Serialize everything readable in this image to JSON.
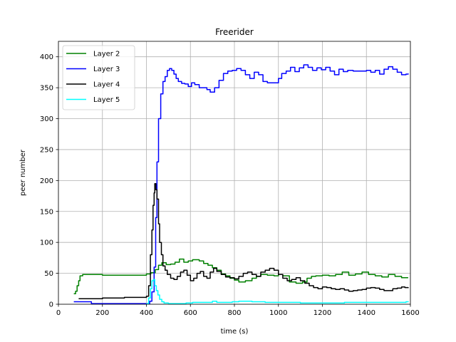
{
  "chart_data": {
    "type": "line",
    "title": "Freerider",
    "xlabel": "time (s)",
    "ylabel": "peer number",
    "xlim": [
      0,
      1600
    ],
    "ylim": [
      0,
      425
    ],
    "xticks": [
      0,
      200,
      400,
      600,
      800,
      1000,
      1200,
      1400,
      1600
    ],
    "yticks": [
      0,
      50,
      100,
      150,
      200,
      250,
      300,
      350,
      400
    ],
    "xtick_labels": [
      "0",
      "200",
      "400",
      "600",
      "800",
      "1000",
      "1200",
      "1400",
      "1600"
    ],
    "ytick_labels": [
      "0",
      "50",
      "100",
      "150",
      "200",
      "250",
      "300",
      "350",
      "400"
    ],
    "grid": true,
    "legend_position": "top-left",
    "series": [
      {
        "name": "Layer 2",
        "color": "#008000",
        "points": [
          [
            70,
            17
          ],
          [
            78,
            21
          ],
          [
            85,
            30
          ],
          [
            92,
            38
          ],
          [
            98,
            46
          ],
          [
            110,
            48
          ],
          [
            150,
            48
          ],
          [
            200,
            47
          ],
          [
            260,
            47
          ],
          [
            340,
            47
          ],
          [
            380,
            47
          ],
          [
            400,
            49
          ],
          [
            420,
            51
          ],
          [
            440,
            56
          ],
          [
            455,
            63
          ],
          [
            470,
            67
          ],
          [
            490,
            64
          ],
          [
            510,
            65
          ],
          [
            530,
            68
          ],
          [
            550,
            73
          ],
          [
            570,
            68
          ],
          [
            590,
            70
          ],
          [
            610,
            72
          ],
          [
            640,
            70
          ],
          [
            660,
            66
          ],
          [
            680,
            63
          ],
          [
            700,
            59
          ],
          [
            720,
            55
          ],
          [
            740,
            49
          ],
          [
            760,
            46
          ],
          [
            780,
            42
          ],
          [
            800,
            39
          ],
          [
            820,
            36
          ],
          [
            850,
            38
          ],
          [
            880,
            42
          ],
          [
            900,
            45
          ],
          [
            920,
            48
          ],
          [
            950,
            47
          ],
          [
            980,
            46
          ],
          [
            1000,
            48
          ],
          [
            1020,
            46
          ],
          [
            1050,
            36
          ],
          [
            1080,
            34
          ],
          [
            1110,
            36
          ],
          [
            1130,
            42
          ],
          [
            1150,
            45
          ],
          [
            1170,
            46
          ],
          [
            1200,
            47
          ],
          [
            1230,
            46
          ],
          [
            1260,
            48
          ],
          [
            1290,
            52
          ],
          [
            1320,
            47
          ],
          [
            1350,
            49
          ],
          [
            1380,
            52
          ],
          [
            1410,
            48
          ],
          [
            1440,
            46
          ],
          [
            1470,
            44
          ],
          [
            1500,
            48
          ],
          [
            1530,
            45
          ],
          [
            1560,
            43
          ],
          [
            1590,
            43
          ]
        ]
      },
      {
        "name": "Layer 3",
        "color": "#0000ff",
        "points": [
          [
            70,
            4
          ],
          [
            100,
            4
          ],
          [
            150,
            1
          ],
          [
            200,
            1
          ],
          [
            260,
            1
          ],
          [
            330,
            1
          ],
          [
            400,
            1
          ],
          [
            415,
            5
          ],
          [
            425,
            20
          ],
          [
            435,
            60
          ],
          [
            442,
            140
          ],
          [
            448,
            230
          ],
          [
            455,
            300
          ],
          [
            465,
            340
          ],
          [
            475,
            360
          ],
          [
            485,
            368
          ],
          [
            495,
            378
          ],
          [
            505,
            381
          ],
          [
            515,
            378
          ],
          [
            525,
            372
          ],
          [
            535,
            365
          ],
          [
            545,
            360
          ],
          [
            560,
            357
          ],
          [
            575,
            356
          ],
          [
            590,
            352
          ],
          [
            605,
            358
          ],
          [
            620,
            355
          ],
          [
            640,
            350
          ],
          [
            660,
            350
          ],
          [
            675,
            347
          ],
          [
            690,
            343
          ],
          [
            710,
            350
          ],
          [
            730,
            362
          ],
          [
            750,
            373
          ],
          [
            770,
            377
          ],
          [
            790,
            378
          ],
          [
            810,
            381
          ],
          [
            830,
            378
          ],
          [
            850,
            371
          ],
          [
            870,
            365
          ],
          [
            890,
            375
          ],
          [
            910,
            371
          ],
          [
            930,
            360
          ],
          [
            950,
            358
          ],
          [
            980,
            358
          ],
          [
            1000,
            365
          ],
          [
            1015,
            373
          ],
          [
            1035,
            377
          ],
          [
            1055,
            383
          ],
          [
            1075,
            376
          ],
          [
            1095,
            382
          ],
          [
            1115,
            387
          ],
          [
            1135,
            383
          ],
          [
            1155,
            378
          ],
          [
            1175,
            382
          ],
          [
            1195,
            379
          ],
          [
            1215,
            383
          ],
          [
            1235,
            377
          ],
          [
            1255,
            371
          ],
          [
            1275,
            380
          ],
          [
            1295,
            376
          ],
          [
            1315,
            378
          ],
          [
            1340,
            377
          ],
          [
            1370,
            377
          ],
          [
            1400,
            378
          ],
          [
            1420,
            375
          ],
          [
            1440,
            378
          ],
          [
            1460,
            372
          ],
          [
            1480,
            380
          ],
          [
            1500,
            384
          ],
          [
            1520,
            380
          ],
          [
            1540,
            375
          ],
          [
            1560,
            371
          ],
          [
            1580,
            372
          ],
          [
            1590,
            373
          ]
        ]
      },
      {
        "name": "Layer 4",
        "color": "#000000",
        "points": [
          [
            92,
            9
          ],
          [
            200,
            10
          ],
          [
            300,
            11
          ],
          [
            400,
            13
          ],
          [
            410,
            30
          ],
          [
            418,
            80
          ],
          [
            425,
            120
          ],
          [
            430,
            160
          ],
          [
            435,
            180
          ],
          [
            438,
            195
          ],
          [
            443,
            185
          ],
          [
            448,
            170
          ],
          [
            455,
            130
          ],
          [
            460,
            100
          ],
          [
            468,
            80
          ],
          [
            475,
            62
          ],
          [
            485,
            55
          ],
          [
            495,
            48
          ],
          [
            510,
            42
          ],
          [
            525,
            40
          ],
          [
            540,
            45
          ],
          [
            555,
            52
          ],
          [
            570,
            55
          ],
          [
            585,
            47
          ],
          [
            600,
            38
          ],
          [
            615,
            42
          ],
          [
            630,
            50
          ],
          [
            645,
            53
          ],
          [
            660,
            45
          ],
          [
            675,
            42
          ],
          [
            690,
            52
          ],
          [
            705,
            58
          ],
          [
            720,
            53
          ],
          [
            740,
            48
          ],
          [
            760,
            44
          ],
          [
            780,
            43
          ],
          [
            800,
            41
          ],
          [
            820,
            45
          ],
          [
            840,
            50
          ],
          [
            860,
            52
          ],
          [
            880,
            48
          ],
          [
            900,
            45
          ],
          [
            920,
            52
          ],
          [
            940,
            55
          ],
          [
            960,
            58
          ],
          [
            980,
            55
          ],
          [
            1000,
            48
          ],
          [
            1020,
            42
          ],
          [
            1040,
            38
          ],
          [
            1060,
            40
          ],
          [
            1080,
            43
          ],
          [
            1100,
            38
          ],
          [
            1120,
            34
          ],
          [
            1140,
            30
          ],
          [
            1160,
            27
          ],
          [
            1180,
            25
          ],
          [
            1200,
            28
          ],
          [
            1220,
            27
          ],
          [
            1240,
            25
          ],
          [
            1260,
            24
          ],
          [
            1280,
            25
          ],
          [
            1300,
            23
          ],
          [
            1320,
            21
          ],
          [
            1340,
            22
          ],
          [
            1360,
            23
          ],
          [
            1380,
            24
          ],
          [
            1400,
            26
          ],
          [
            1420,
            27
          ],
          [
            1440,
            26
          ],
          [
            1460,
            24
          ],
          [
            1480,
            22
          ],
          [
            1500,
            22
          ],
          [
            1520,
            25
          ],
          [
            1540,
            26
          ],
          [
            1560,
            28
          ],
          [
            1575,
            27
          ],
          [
            1590,
            26
          ]
        ]
      },
      {
        "name": "Layer 5",
        "color": "#00ffff",
        "points": [
          [
            400,
            1
          ],
          [
            410,
            10
          ],
          [
            418,
            25
          ],
          [
            425,
            38
          ],
          [
            432,
            40
          ],
          [
            438,
            30
          ],
          [
            445,
            22
          ],
          [
            452,
            15
          ],
          [
            460,
            8
          ],
          [
            470,
            4
          ],
          [
            480,
            2
          ],
          [
            500,
            1
          ],
          [
            520,
            1
          ],
          [
            550,
            1
          ],
          [
            580,
            2
          ],
          [
            610,
            3
          ],
          [
            640,
            3
          ],
          [
            670,
            3
          ],
          [
            700,
            5
          ],
          [
            720,
            3
          ],
          [
            750,
            3
          ],
          [
            790,
            4
          ],
          [
            820,
            5
          ],
          [
            850,
            5
          ],
          [
            880,
            4
          ],
          [
            910,
            4
          ],
          [
            940,
            3
          ],
          [
            970,
            3
          ],
          [
            1000,
            3
          ],
          [
            1030,
            3
          ],
          [
            1060,
            3
          ],
          [
            1100,
            2
          ],
          [
            1150,
            2
          ],
          [
            1200,
            2
          ],
          [
            1250,
            2
          ],
          [
            1300,
            3
          ],
          [
            1350,
            3
          ],
          [
            1400,
            3
          ],
          [
            1450,
            3
          ],
          [
            1500,
            3
          ],
          [
            1550,
            3
          ],
          [
            1580,
            4
          ],
          [
            1590,
            5
          ]
        ]
      }
    ]
  }
}
